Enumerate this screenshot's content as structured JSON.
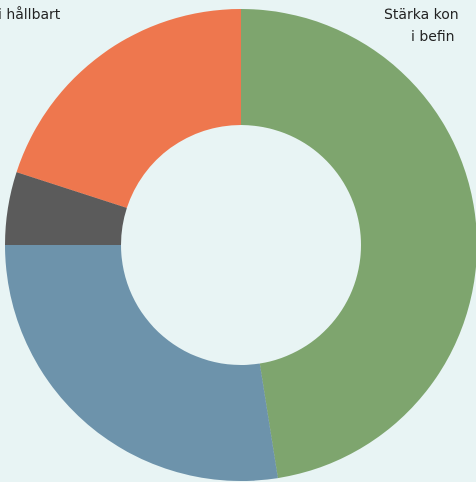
{
  "chart_data": {
    "type": "pie",
    "donut": true,
    "values": [
      47.5,
      27.5,
      5,
      20
    ],
    "colors": [
      "#7ea56e",
      "#6d93ab",
      "#5b5b5b",
      "#ee774e"
    ],
    "annotations": [
      {
        "lines": [
          "i hållbart"
        ]
      },
      {
        "lines": [
          "Stärka kon",
          "i befin"
        ]
      }
    ]
  }
}
